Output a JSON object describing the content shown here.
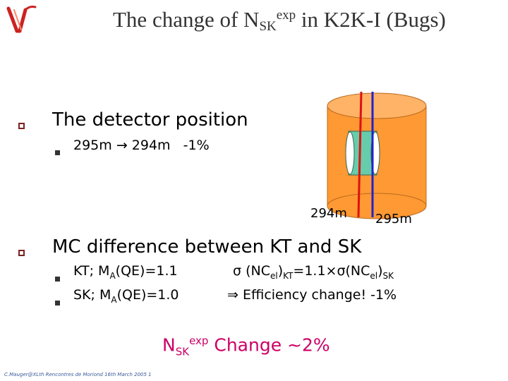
{
  "title": {
    "prefix": "The change of N",
    "sub": "SK",
    "sup": "exp",
    "suffix": " in K2K-I (Bugs)"
  },
  "bullet1": {
    "heading": "The detector position",
    "sub_text": "295m  294m  -1%",
    "arrow_glyph": "→"
  },
  "diagram": {
    "label_294": "294m",
    "label_295": "295m",
    "cylinder_color": "#ff9933",
    "line_294_color": "#dd1111",
    "line_295_color": "#2222cc"
  },
  "bullet2": {
    "heading": "MC difference between KT and SK",
    "row1": {
      "left": "KT; M",
      "left_sub": "A",
      "left_rest": "(QE)=1.1",
      "sigma": "σ",
      "nc": " (NC",
      "el": "el",
      "kt": ")",
      "kt_sub": "KT",
      "mid": "=1.1×σ(NC",
      "el2": "el",
      "close": ")",
      "sk_sub": "SK"
    },
    "row2": {
      "left": "SK; M",
      "left_sub": "A",
      "left_rest": "(QE)=1.0",
      "implies": "⇒",
      "text": " Efficiency change!  -1%"
    }
  },
  "summary": {
    "n": "N",
    "sub": "SK",
    "sup": "exp",
    "text": " Change ~2%"
  },
  "footer": "C.Mauger@XLth  Rencontres  de  Moriond  16th  March  2005 1"
}
